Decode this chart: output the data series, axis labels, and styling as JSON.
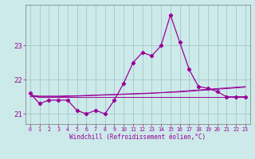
{
  "hours": [
    0,
    1,
    2,
    3,
    4,
    5,
    6,
    7,
    8,
    9,
    10,
    11,
    12,
    13,
    14,
    15,
    16,
    17,
    18,
    19,
    20,
    21,
    22,
    23
  ],
  "windchill": [
    21.6,
    21.3,
    21.4,
    21.4,
    21.4,
    21.1,
    21.0,
    21.1,
    21.0,
    21.4,
    21.9,
    22.5,
    22.8,
    22.7,
    23.0,
    23.9,
    23.1,
    22.3,
    21.8,
    21.75,
    21.65,
    21.5,
    21.5,
    21.5
  ],
  "line2": [
    21.55,
    21.52,
    21.52,
    21.52,
    21.53,
    21.53,
    21.54,
    21.55,
    21.56,
    21.57,
    21.58,
    21.59,
    21.6,
    21.61,
    21.62,
    21.63,
    21.64,
    21.66,
    21.68,
    21.7,
    21.72,
    21.74,
    21.76,
    21.78
  ],
  "line3": [
    21.5,
    21.5,
    21.5,
    21.5,
    21.51,
    21.52,
    21.53,
    21.54,
    21.55,
    21.56,
    21.57,
    21.58,
    21.59,
    21.6,
    21.62,
    21.64,
    21.66,
    21.68,
    21.7,
    21.72,
    21.74,
    21.76,
    21.78,
    21.8
  ],
  "line4": [
    21.55,
    21.48,
    21.48,
    21.48,
    21.48,
    21.48,
    21.48,
    21.48,
    21.48,
    21.48,
    21.48,
    21.48,
    21.48,
    21.48,
    21.48,
    21.48,
    21.48,
    21.48,
    21.48,
    21.48,
    21.48,
    21.48,
    21.48,
    21.48
  ],
  "color": "#990099",
  "bg_color": "#cceaea",
  "grid_color": "#aacccc",
  "yticks": [
    21,
    22,
    23
  ],
  "xlabel": "Windchill (Refroidissement éolien,°C)",
  "ylim": [
    20.7,
    24.2
  ],
  "xlim": [
    -0.5,
    23.5
  ]
}
